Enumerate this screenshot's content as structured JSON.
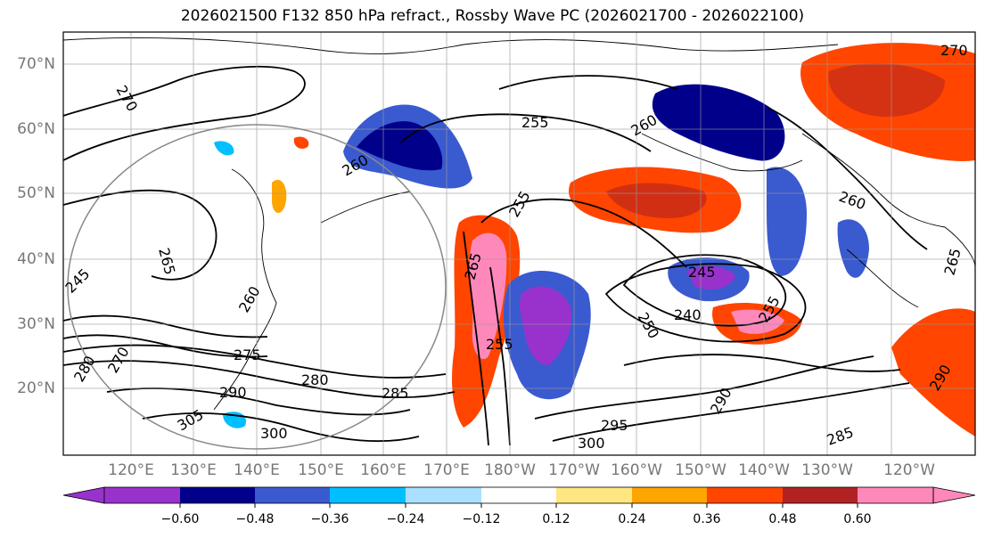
{
  "title": "2026021500 F132 850 hPa refract., Rossby Wave PC (2026021700 - 2026022100)",
  "lat_labels": [
    "70°N",
    "60°N",
    "50°N",
    "40°N",
    "30°N",
    "20°N"
  ],
  "lon_labels": [
    "120°E",
    "130°E",
    "140°E",
    "150°E",
    "160°E",
    "170°E",
    "180°W",
    "170°W",
    "160°W",
    "150°W",
    "140°W",
    "130°W",
    "120°W"
  ],
  "contour_labels": [
    "270",
    "255",
    "260",
    "270",
    "265",
    "260",
    "255",
    "260",
    "265",
    "255",
    "275",
    "280",
    "285",
    "290",
    "295",
    "300",
    "290",
    "285",
    "240",
    "245",
    "255",
    "260",
    "265",
    "245",
    "250",
    "270",
    "280",
    "290",
    "300",
    "305"
  ],
  "colorbar": {
    "ticks": [
      "−0.60",
      "−0.48",
      "−0.36",
      "−0.24",
      "−0.12",
      "0.12",
      "0.24",
      "0.36",
      "0.48",
      "0.60"
    ],
    "colors": [
      "#9932cc",
      "#00008b",
      "#3a5ad0",
      "#00bfff",
      "#aadfff",
      "#ffffff",
      "#ffe680",
      "#ffa500",
      "#ff4500",
      "#b22222",
      "#ff88bb"
    ]
  },
  "map_features": [
    "coastlines",
    "contours",
    "gridlines",
    "shaded-anomalies",
    "great-circle"
  ]
}
